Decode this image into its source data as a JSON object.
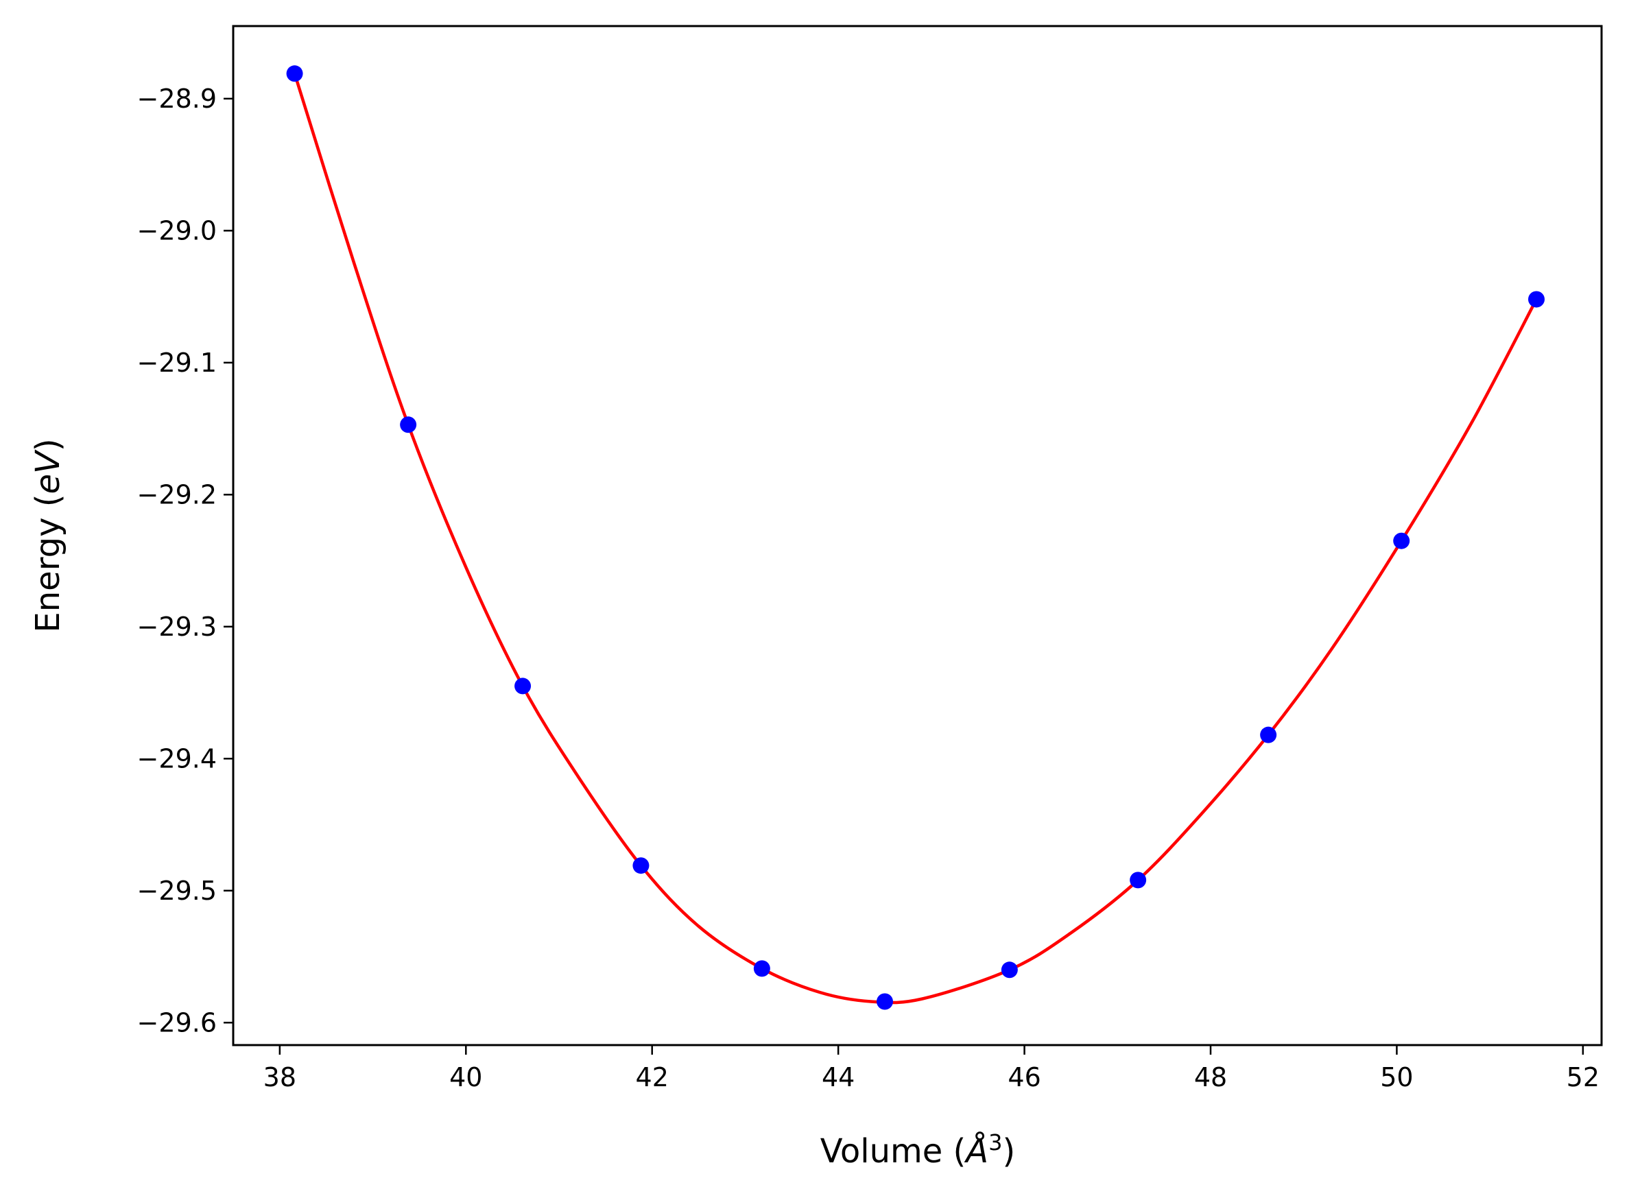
{
  "chart_data": {
    "type": "scatter",
    "title": "",
    "xlabel": "Volume ($\\AA^3$)",
    "xlabel_main": "Volume (",
    "xlabel_unit": "Å",
    "xlabel_sup": "3",
    "xlabel_close": ")",
    "ylabel": "Energy ($eV$)",
    "ylabel_main": "Energy (",
    "ylabel_unit": "eV",
    "ylabel_close": ")",
    "xlim": [
      37.5,
      52.2
    ],
    "ylim": [
      -29.617,
      -28.845
    ],
    "xticks": [
      38,
      40,
      42,
      44,
      46,
      48,
      50,
      52
    ],
    "yticks": [
      -28.9,
      -29.0,
      -29.1,
      -29.2,
      -29.3,
      -29.4,
      -29.5,
      -29.6
    ],
    "xtick_labels": [
      "38",
      "40",
      "42",
      "44",
      "46",
      "48",
      "50",
      "52"
    ],
    "ytick_labels": [
      "−28.9",
      "−29.0",
      "−29.1",
      "−29.2",
      "−29.3",
      "−29.4",
      "−29.5",
      "−29.6"
    ],
    "grid": false,
    "series": [
      {
        "kind": "points",
        "color": "#0000ff",
        "x": [
          38.16,
          39.38,
          40.61,
          41.88,
          43.18,
          44.5,
          45.84,
          47.22,
          48.62,
          50.05,
          51.5
        ],
        "y": [
          -28.881,
          -29.147,
          -29.345,
          -29.481,
          -29.559,
          -29.584,
          -29.56,
          -29.492,
          -29.382,
          -29.235,
          -29.052
        ]
      },
      {
        "kind": "fit",
        "color": "#ff0000",
        "x": [
          38.16,
          38.8,
          39.38,
          40.0,
          40.61,
          41.2,
          41.88,
          42.5,
          43.18,
          43.8,
          44.35,
          44.9,
          45.84,
          46.5,
          47.22,
          47.9,
          48.62,
          49.3,
          50.05,
          50.8,
          51.5
        ],
        "y": [
          -28.881,
          -29.025,
          -29.147,
          -29.255,
          -29.345,
          -29.413,
          -29.481,
          -29.527,
          -29.559,
          -29.577,
          -29.584,
          -29.582,
          -29.56,
          -29.532,
          -29.492,
          -29.442,
          -29.382,
          -29.317,
          -29.235,
          -29.146,
          -29.052
        ]
      }
    ]
  }
}
